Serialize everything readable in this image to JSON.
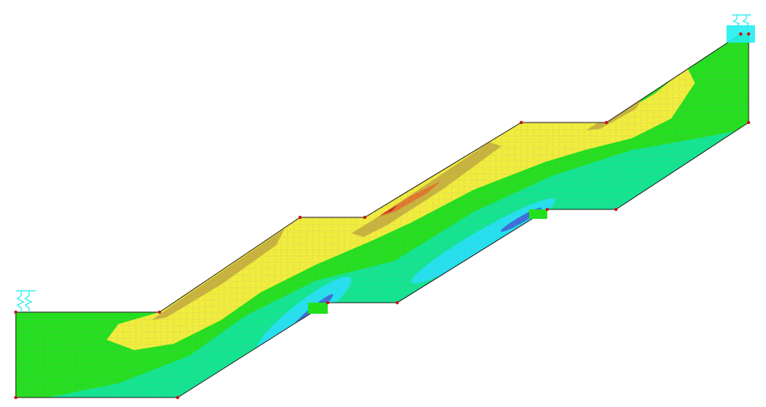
{
  "view": {
    "type": "finite-element contour plot",
    "background": "#ffffff"
  },
  "palette": {
    "base_green": "#22e01c",
    "yellow": "#f0ee3a",
    "olive": "#c8b43a",
    "orange": "#e0782a",
    "red": "#d02a1a",
    "teal_green": "#10e68e",
    "cyan": "#22e2ee",
    "blue": "#3a6fd8",
    "mesh": "#b88ac8",
    "outline": "#222222",
    "node": "#cc1111",
    "support": "#22eeee"
  }
}
